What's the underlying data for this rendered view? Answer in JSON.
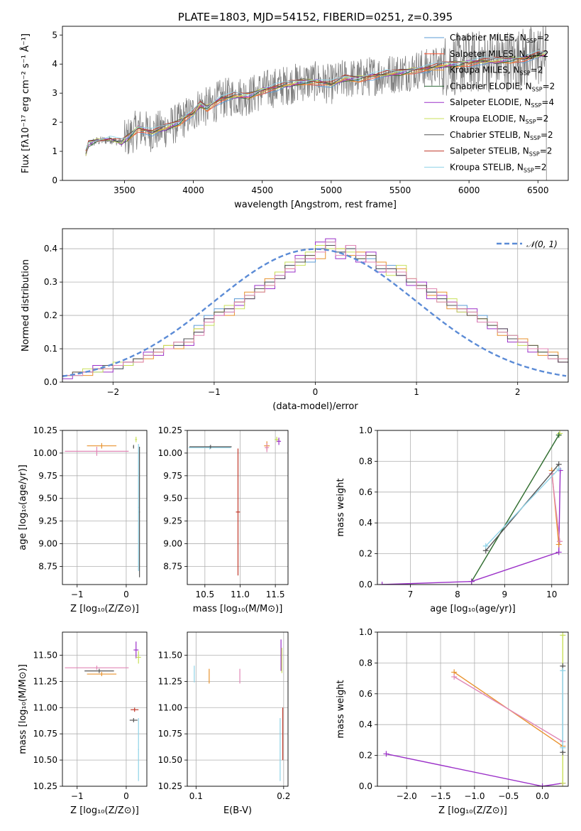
{
  "chart_data": [
    {
      "id": "spectrum",
      "type": "line",
      "title": "PLATE=1803, MJD=54152, FIBERID=0251, z=0.395",
      "xlabel": "wavelength [Angstrom, rest frame]",
      "ylabel": "Flux [fλ10⁻¹⁷ erg cm⁻² s⁻¹ Å⁻¹]",
      "xlim": [
        3050,
        6720
      ],
      "ylim": [
        0,
        5.3
      ],
      "xticks": [
        3500,
        4000,
        4500,
        5000,
        5500,
        6000,
        6500
      ],
      "yticks": [
        0,
        1,
        2,
        3,
        4,
        5
      ],
      "grid": false,
      "legend_position": "right",
      "series": [
        {
          "name": "Chabrier MILES, N_SSP=2",
          "legend_main": "Chabrier MILES, N",
          "legend_sub": "SSP",
          "legend_end": "=2",
          "color": "#5b9bd5"
        },
        {
          "name": "Salpeter MILES, N_SSP=2",
          "legend_main": "Salpeter MILES, N",
          "legend_sub": "SSP",
          "legend_end": "=2",
          "color": "#ff5733"
        },
        {
          "name": "Kroupa MILES, N_SSP=2",
          "legend_main": "Kroupa MILES, N",
          "legend_sub": "SSP",
          "legend_end": "=2",
          "color": "#e8922e"
        },
        {
          "name": "Chabrier ELODIE, N_SSP=2",
          "legend_main": "Chabrier ELODIE, N",
          "legend_sub": "SSP",
          "legend_end": "=2",
          "color": "#2e6b3a"
        },
        {
          "name": "Salpeter ELODIE, N_SSP=4",
          "legend_main": "Salpeter ELODIE, N",
          "legend_sub": "SSP",
          "legend_end": "=4",
          "color": "#9b30c8"
        },
        {
          "name": "Kroupa ELODIE, N_SSP=2",
          "legend_main": "Kroupa ELODIE, N",
          "legend_sub": "SSP",
          "legend_end": "=2",
          "color": "#c8e05a"
        },
        {
          "name": "Chabrier STELIB, N_SSP=2",
          "legend_main": "Chabrier STELIB, N",
          "legend_sub": "SSP",
          "legend_end": "=2",
          "color": "#555555"
        },
        {
          "name": "Salpeter STELIB, N_SSP=2",
          "legend_main": "Salpeter STELIB, N",
          "legend_sub": "SSP",
          "legend_end": "=2",
          "color": "#c0392b"
        },
        {
          "name": "Kroupa STELIB, N_SSP=2",
          "legend_main": "Kroupa STELIB, N",
          "legend_sub": "SSP",
          "legend_end": "=2",
          "color": "#8fd3e8"
        }
      ],
      "model_x": [
        3220,
        3240,
        3300,
        3400,
        3480,
        3520,
        3600,
        3700,
        3800,
        3900,
        3950,
        4000,
        4050,
        4100,
        4200,
        4300,
        4400,
        4500,
        4600,
        4700,
        4800,
        4900,
        5000,
        5100,
        5200,
        5300,
        5400,
        5500,
        5600,
        5700,
        5800,
        5900,
        6000,
        6100,
        6200,
        6300,
        6400,
        6500,
        6560
      ],
      "model_y": [
        0.9,
        1.25,
        1.35,
        1.4,
        1.3,
        1.45,
        1.8,
        1.65,
        1.8,
        2.0,
        2.2,
        2.3,
        2.6,
        2.5,
        2.8,
        2.9,
        2.9,
        3.1,
        3.2,
        3.3,
        3.4,
        3.4,
        3.3,
        3.5,
        3.5,
        3.6,
        3.65,
        3.7,
        3.8,
        3.85,
        3.95,
        4.0,
        4.05,
        4.1,
        4.1,
        4.15,
        4.2,
        4.3,
        4.35
      ]
    },
    {
      "id": "residuals",
      "type": "histogram",
      "xlabel": "(data-model)/error",
      "ylabel": "Normed distribution",
      "xlim": [
        -2.5,
        2.5
      ],
      "ylim": [
        0,
        0.46
      ],
      "xticks": [
        -2,
        -1,
        0,
        1,
        2
      ],
      "yticks": [
        0.0,
        0.1,
        0.2,
        0.3,
        0.4
      ],
      "grid": true,
      "legend_position": "top-right",
      "reference": {
        "name": "𝒩(0, 1)",
        "color": "#5b8bd6",
        "mean": 0,
        "sigma": 1
      },
      "bin_edges_start": -2.5,
      "bin_width": 0.1,
      "histograms": [
        {
          "color": "#5b9bd5",
          "values": [
            0.02,
            0.02,
            0.03,
            0.03,
            0.05,
            0.04,
            0.05,
            0.07,
            0.08,
            0.09,
            0.1,
            0.11,
            0.13,
            0.17,
            0.2,
            0.22,
            0.21,
            0.25,
            0.26,
            0.28,
            0.3,
            0.32,
            0.35,
            0.37,
            0.36,
            0.4,
            0.42,
            0.39,
            0.4,
            0.38,
            0.37,
            0.34,
            0.35,
            0.33,
            0.3,
            0.28,
            0.27,
            0.25,
            0.24,
            0.23,
            0.21,
            0.2,
            0.17,
            0.15,
            0.14,
            0.12,
            0.1,
            0.09,
            0.08,
            0.07
          ]
        },
        {
          "color": "#e8922e",
          "values": [
            0.02,
            0.03,
            0.02,
            0.04,
            0.04,
            0.05,
            0.06,
            0.06,
            0.07,
            0.09,
            0.11,
            0.1,
            0.12,
            0.16,
            0.18,
            0.21,
            0.2,
            0.24,
            0.27,
            0.27,
            0.31,
            0.33,
            0.34,
            0.36,
            0.38,
            0.37,
            0.41,
            0.4,
            0.38,
            0.39,
            0.36,
            0.36,
            0.33,
            0.34,
            0.31,
            0.29,
            0.26,
            0.27,
            0.22,
            0.22,
            0.2,
            0.19,
            0.18,
            0.14,
            0.13,
            0.13,
            0.11,
            0.08,
            0.09,
            0.06
          ]
        },
        {
          "color": "#9b30c8",
          "values": [
            0.01,
            0.02,
            0.03,
            0.05,
            0.03,
            0.05,
            0.06,
            0.07,
            0.09,
            0.08,
            0.1,
            0.12,
            0.11,
            0.15,
            0.19,
            0.2,
            0.22,
            0.23,
            0.25,
            0.29,
            0.28,
            0.31,
            0.33,
            0.38,
            0.37,
            0.42,
            0.43,
            0.37,
            0.41,
            0.36,
            0.39,
            0.33,
            0.34,
            0.32,
            0.29,
            0.3,
            0.25,
            0.26,
            0.24,
            0.21,
            0.22,
            0.18,
            0.16,
            0.16,
            0.12,
            0.12,
            0.09,
            0.1,
            0.07,
            0.06
          ]
        },
        {
          "color": "#c8e05a",
          "values": [
            0.02,
            0.02,
            0.04,
            0.03,
            0.04,
            0.06,
            0.05,
            0.07,
            0.08,
            0.09,
            0.11,
            0.12,
            0.12,
            0.16,
            0.17,
            0.21,
            0.23,
            0.22,
            0.26,
            0.27,
            0.29,
            0.33,
            0.36,
            0.35,
            0.39,
            0.41,
            0.4,
            0.4,
            0.39,
            0.37,
            0.38,
            0.35,
            0.32,
            0.35,
            0.31,
            0.28,
            0.28,
            0.24,
            0.25,
            0.21,
            0.21,
            0.19,
            0.17,
            0.15,
            0.14,
            0.11,
            0.11,
            0.09,
            0.07,
            0.07
          ]
        },
        {
          "color": "#555555",
          "values": [
            0.02,
            0.03,
            0.03,
            0.04,
            0.05,
            0.04,
            0.06,
            0.07,
            0.08,
            0.1,
            0.1,
            0.11,
            0.13,
            0.15,
            0.19,
            0.21,
            0.22,
            0.24,
            0.25,
            0.28,
            0.3,
            0.31,
            0.35,
            0.36,
            0.38,
            0.4,
            0.41,
            0.39,
            0.4,
            0.37,
            0.38,
            0.34,
            0.34,
            0.32,
            0.3,
            0.29,
            0.27,
            0.25,
            0.23,
            0.22,
            0.2,
            0.19,
            0.17,
            0.16,
            0.13,
            0.12,
            0.11,
            0.09,
            0.08,
            0.06
          ]
        },
        {
          "color": "#e087b6",
          "values": [
            0.02,
            0.02,
            0.03,
            0.04,
            0.04,
            0.05,
            0.06,
            0.06,
            0.08,
            0.09,
            0.1,
            0.12,
            0.12,
            0.14,
            0.18,
            0.2,
            0.21,
            0.24,
            0.26,
            0.27,
            0.29,
            0.32,
            0.34,
            0.37,
            0.37,
            0.39,
            0.42,
            0.38,
            0.41,
            0.38,
            0.36,
            0.35,
            0.33,
            0.33,
            0.31,
            0.28,
            0.28,
            0.24,
            0.24,
            0.22,
            0.21,
            0.18,
            0.18,
            0.15,
            0.14,
            0.12,
            0.1,
            0.1,
            0.07,
            0.07
          ]
        }
      ]
    },
    {
      "id": "age-vs-z",
      "type": "scatter",
      "xlabel": "Z [log₁₀(Z/Z⊙)]",
      "ylabel": "age  [log₁₀(age/yr)]",
      "xlim": [
        -1.3,
        0.42
      ],
      "ylim": [
        8.55,
        10.25
      ],
      "xticks": [
        -1,
        0
      ],
      "yticks": [
        8.75,
        9.0,
        9.25,
        9.5,
        9.75,
        10.0,
        10.25
      ],
      "grid": true,
      "points": [
        {
          "x": -0.6,
          "y": 10.02,
          "xerr": 0.65,
          "yerr": 0.05,
          "color": "#e087b6"
        },
        {
          "x": -0.5,
          "y": 10.08,
          "xerr": 0.3,
          "yerr": 0.03,
          "color": "#e8922e"
        },
        {
          "x": 0.15,
          "y": 10.07,
          "xerr": 0.01,
          "yerr": 0.02,
          "color": "#555555"
        },
        {
          "x": 0.2,
          "y": 10.15,
          "xerr": 0.02,
          "yerr": 0.03,
          "color": "#c8e05a"
        },
        {
          "x": 0.25,
          "y": 9.4,
          "xerr": 0.01,
          "yerr": 0.7,
          "color": "#8fd3e8"
        },
        {
          "x": 0.27,
          "y": 9.35,
          "xerr": 0.01,
          "yerr": 0.72,
          "color": "#555555"
        }
      ]
    },
    {
      "id": "age-vs-mass",
      "type": "scatter",
      "xlabel": "mass [log₁₀(M/M⊙)]",
      "ylabel": "",
      "xlim": [
        10.25,
        11.68
      ],
      "ylim": [
        8.55,
        10.25
      ],
      "xticks": [
        10.5,
        11.0,
        11.5
      ],
      "yticks": [
        8.75,
        9.0,
        9.25,
        9.5,
        9.75,
        10.0,
        10.25
      ],
      "grid": true,
      "points": [
        {
          "x": 10.57,
          "y": 10.06,
          "xerr": 0.3,
          "yerr": 0.02,
          "color": "#8fd3e8"
        },
        {
          "x": 10.58,
          "y": 10.07,
          "xerr": 0.3,
          "yerr": 0.02,
          "color": "#555555"
        },
        {
          "x": 10.97,
          "y": 9.35,
          "xerr": 0.03,
          "yerr": 0.7,
          "color": "#c0392b"
        },
        {
          "x": 11.38,
          "y": 10.08,
          "xerr": 0.04,
          "yerr": 0.05,
          "color": "#e8922e"
        },
        {
          "x": 11.38,
          "y": 10.06,
          "xerr": 0.03,
          "yerr": 0.05,
          "color": "#e087b6"
        },
        {
          "x": 11.52,
          "y": 10.15,
          "xerr": 0.03,
          "yerr": 0.03,
          "color": "#c8e05a"
        },
        {
          "x": 11.55,
          "y": 10.13,
          "xerr": 0.03,
          "yerr": 0.04,
          "color": "#9b30c8"
        }
      ]
    },
    {
      "id": "mass-weight-vs-age",
      "type": "line",
      "xlabel": "age  [log₁₀(age/yr)]",
      "ylabel": "mass weight",
      "xlim": [
        6.3,
        10.35
      ],
      "ylim": [
        0,
        1.0
      ],
      "xticks": [
        7,
        8,
        9,
        10
      ],
      "yticks": [
        0.0,
        0.2,
        0.4,
        0.6,
        0.8,
        1.0
      ],
      "grid": true,
      "series": [
        {
          "name": "Kroupa ELODIE",
          "color": "#c8e05a",
          "x": [
            8.3,
            10.17
          ],
          "y": [
            0.02,
            0.98
          ]
        },
        {
          "name": "Chabrier ELODIE",
          "color": "#2e6b3a",
          "x": [
            8.3,
            10.15
          ],
          "y": [
            0.02,
            0.97
          ]
        },
        {
          "name": "Salpeter ELODIE",
          "color": "#9b30c8",
          "x": [
            6.4,
            8.3,
            10.15,
            10.18
          ],
          "y": [
            0.0,
            0.02,
            0.21,
            0.74
          ]
        },
        {
          "name": "Salpeter MILES",
          "color": "#e8922e",
          "x": [
            10.0,
            10.15
          ],
          "y": [
            0.74,
            0.26
          ]
        },
        {
          "name": "Chabrier MILES",
          "color": "#e087b6",
          "x": [
            10.0,
            10.17
          ],
          "y": [
            0.72,
            0.28
          ]
        },
        {
          "name": "Chabrier STELIB",
          "color": "#555555",
          "x": [
            8.6,
            10.15
          ],
          "y": [
            0.22,
            0.78
          ]
        },
        {
          "name": "Salpeter STELIB",
          "color": "#8fd3e8",
          "x": [
            8.6,
            10.15
          ],
          "y": [
            0.25,
            0.75
          ]
        }
      ]
    },
    {
      "id": "mass-vs-z",
      "type": "scatter",
      "xlabel": "Z [log₁₀(Z/Z⊙)]",
      "ylabel": "mass [log₁₀(M/M⊙)]",
      "xlim": [
        -1.3,
        0.42
      ],
      "ylim": [
        10.25,
        11.72
      ],
      "xticks": [
        -1,
        0
      ],
      "yticks": [
        10.25,
        10.5,
        10.75,
        11.0,
        11.25,
        11.5
      ],
      "grid": true,
      "points": [
        {
          "x": -0.6,
          "y": 11.38,
          "xerr": 0.65,
          "yerr": 0.02,
          "color": "#e087b6"
        },
        {
          "x": -0.55,
          "y": 11.35,
          "xerr": 0.3,
          "yerr": 0.02,
          "color": "#555555"
        },
        {
          "x": -0.5,
          "y": 11.32,
          "xerr": 0.3,
          "yerr": 0.02,
          "color": "#e8922e"
        },
        {
          "x": 0.2,
          "y": 11.55,
          "xerr": 0.05,
          "yerr": 0.08,
          "color": "#9b30c8"
        },
        {
          "x": 0.25,
          "y": 11.48,
          "xerr": 0.05,
          "yerr": 0.06,
          "color": "#c8e05a"
        },
        {
          "x": 0.17,
          "y": 10.98,
          "xerr": 0.08,
          "yerr": 0.02,
          "color": "#c0392b"
        },
        {
          "x": 0.15,
          "y": 10.88,
          "xerr": 0.08,
          "yerr": 0.02,
          "color": "#555555"
        },
        {
          "x": 0.25,
          "y": 10.6,
          "xerr": 0.01,
          "yerr": 0.3,
          "color": "#8fd3e8"
        }
      ]
    },
    {
      "id": "mass-vs-ebv",
      "type": "scatter",
      "xlabel": "E(B-V)",
      "ylabel": "",
      "xlim": [
        0.09,
        0.205
      ],
      "ylim": [
        10.25,
        11.72
      ],
      "xticks": [
        0.1,
        0.2
      ],
      "yticks": [
        10.25,
        10.5,
        10.75,
        11.0,
        11.25,
        11.5
      ],
      "grid": true,
      "points": [
        {
          "x": 0.098,
          "y": 11.32,
          "xerr": 0,
          "yerr": 0.08,
          "color": "#8fd3e8"
        },
        {
          "x": 0.115,
          "y": 11.3,
          "xerr": 0,
          "yerr": 0.07,
          "color": "#e8922e"
        },
        {
          "x": 0.15,
          "y": 11.3,
          "xerr": 0,
          "yerr": 0.07,
          "color": "#e087b6"
        },
        {
          "x": 0.197,
          "y": 11.5,
          "xerr": 0,
          "yerr": 0.15,
          "color": "#9b30c8"
        },
        {
          "x": 0.198,
          "y": 11.45,
          "xerr": 0,
          "yerr": 0.12,
          "color": "#c8e05a"
        },
        {
          "x": 0.199,
          "y": 10.75,
          "xerr": 0,
          "yerr": 0.25,
          "color": "#c0392b"
        },
        {
          "x": 0.196,
          "y": 10.6,
          "xerr": 0,
          "yerr": 0.3,
          "color": "#8fd3e8"
        }
      ]
    },
    {
      "id": "mass-weight-vs-z",
      "type": "line",
      "xlabel": "Z [log₁₀(Z/Z⊙)]",
      "ylabel": "mass weight",
      "xlim": [
        -2.43,
        0.38
      ],
      "ylim": [
        0,
        1.0
      ],
      "xticks": [
        -2.0,
        -1.5,
        -1.0,
        -0.5,
        0.0
      ],
      "yticks": [
        0.0,
        0.2,
        0.4,
        0.6,
        0.8,
        1.0
      ],
      "grid": true,
      "series": [
        {
          "name": "Salpeter ELODIE",
          "color": "#9b30c8",
          "x": [
            -2.3,
            0.0,
            0.3
          ],
          "y": [
            0.21,
            0.0,
            0.02
          ]
        },
        {
          "name": "Salpeter MILES",
          "color": "#e8922e",
          "x": [
            -1.3,
            0.3
          ],
          "y": [
            0.74,
            0.26
          ]
        },
        {
          "name": "Chabrier MILES",
          "color": "#e087b6",
          "x": [
            -1.3,
            0.3
          ],
          "y": [
            0.71,
            0.29
          ]
        },
        {
          "name": "Kroupa ELODIE",
          "color": "#c8e05a",
          "x": [
            0.3,
            0.3
          ],
          "y": [
            0.02,
            0.98
          ]
        },
        {
          "name": "Chabrier STELIB",
          "color": "#555555",
          "x": [
            0.3,
            0.3
          ],
          "y": [
            0.22,
            0.78
          ]
        },
        {
          "name": "Kroupa STELIB",
          "color": "#8fd3e8",
          "x": [
            0.3,
            0.3
          ],
          "y": [
            0.25,
            0.75
          ]
        }
      ]
    }
  ]
}
